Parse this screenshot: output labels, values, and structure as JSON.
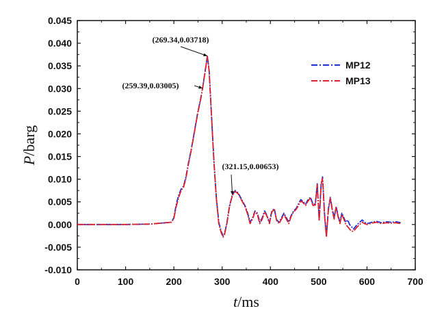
{
  "chart_data": {
    "type": "line",
    "title": "",
    "xlabel_var": "t",
    "xlabel_unit": "/ms",
    "ylabel_var": "P",
    "ylabel_unit": "/barg",
    "xlim": [
      0,
      700
    ],
    "ylim": [
      -0.01,
      0.045
    ],
    "xticks": [
      0,
      100,
      200,
      300,
      400,
      500,
      600,
      700
    ],
    "xtick_labels": [
      "0",
      "100",
      "200",
      "300",
      "400",
      "500",
      "600",
      "700"
    ],
    "yticks": [
      -0.01,
      -0.005,
      0.0,
      0.005,
      0.01,
      0.015,
      0.02,
      0.025,
      0.03,
      0.035,
      0.04,
      0.045
    ],
    "ytick_labels": [
      "-0.010",
      "-0.005",
      "0.000",
      "0.005",
      "0.010",
      "0.015",
      "0.020",
      "0.025",
      "0.030",
      "0.035",
      "0.040",
      "0.045"
    ],
    "grid": false,
    "legend_position": "top-right",
    "series": [
      {
        "name": "MP12",
        "color": "#1a2fd6",
        "style": "dash-dot",
        "x": [
          0,
          100,
          150,
          195,
          200,
          205,
          210,
          215,
          220,
          225,
          230,
          235,
          240,
          245,
          250,
          255,
          259.39,
          265,
          269.34,
          273,
          278,
          283,
          288,
          293,
          298,
          302,
          305,
          310,
          315,
          321.15,
          327,
          333,
          338,
          343,
          348,
          353,
          358,
          363,
          368,
          373,
          378,
          383,
          388,
          393,
          398,
          403,
          408,
          413,
          418,
          423,
          428,
          433,
          438,
          443,
          448,
          453,
          458,
          463,
          468,
          473,
          478,
          483,
          488,
          493,
          497,
          501,
          505,
          508,
          512,
          516,
          520,
          524,
          528,
          532,
          536,
          540,
          544,
          548,
          552,
          556,
          560,
          564,
          568,
          572,
          576,
          580,
          585,
          590,
          595,
          600,
          610,
          620,
          630,
          640,
          650,
          660,
          670
        ],
        "y": [
          0.0,
          0.0,
          0.0001,
          0.0005,
          0.0015,
          0.0045,
          0.0065,
          0.0078,
          0.0085,
          0.0105,
          0.0135,
          0.016,
          0.019,
          0.022,
          0.025,
          0.0275,
          0.03005,
          0.034,
          0.03718,
          0.034,
          0.024,
          0.014,
          0.006,
          0.0005,
          -0.0015,
          -0.0025,
          -0.002,
          0.0005,
          0.004,
          0.00653,
          0.0075,
          0.007,
          0.006,
          0.005,
          0.004,
          0.0025,
          0.0005,
          0.0015,
          0.003,
          0.0025,
          0.0005,
          0.0015,
          0.003,
          0.002,
          0.0005,
          0.003,
          0.0035,
          0.001,
          0.0005,
          0.0015,
          0.0025,
          0.0015,
          0.0005,
          0.002,
          0.003,
          0.0035,
          0.0045,
          0.0055,
          0.005,
          0.0045,
          0.0055,
          0.006,
          0.0045,
          0.0045,
          0.009,
          0.001,
          0.009,
          0.0105,
          0.0025,
          -0.0025,
          0.0035,
          0.006,
          0.0035,
          0.0015,
          0.004,
          0.002,
          0.0005,
          0.0025,
          0.0015,
          0.0005,
          0.001,
          0.0,
          -0.0005,
          -0.001,
          -0.0005,
          0.0,
          0.0005,
          0.001,
          0.0005,
          0.0002,
          0.0005,
          0.0007,
          0.0004,
          0.0006,
          0.0005,
          0.0006,
          0.0004
        ]
      },
      {
        "name": "MP13",
        "color": "#e0202a",
        "style": "dash-dot",
        "x": [
          0,
          100,
          150,
          195,
          200,
          205,
          210,
          215,
          220,
          225,
          230,
          235,
          240,
          245,
          250,
          255,
          259.39,
          265,
          269.34,
          273,
          278,
          283,
          288,
          293,
          298,
          302,
          305,
          310,
          315,
          321.15,
          327,
          333,
          338,
          343,
          348,
          353,
          358,
          363,
          368,
          373,
          378,
          383,
          388,
          393,
          398,
          403,
          408,
          413,
          418,
          423,
          428,
          433,
          438,
          443,
          448,
          453,
          458,
          463,
          468,
          473,
          478,
          483,
          488,
          493,
          497,
          501,
          505,
          508,
          512,
          516,
          520,
          524,
          528,
          532,
          536,
          540,
          544,
          548,
          552,
          556,
          560,
          564,
          568,
          572,
          576,
          580,
          585,
          590,
          595,
          600,
          610,
          620,
          630,
          640,
          650,
          660,
          670
        ],
        "y": [
          0.0,
          0.0,
          0.0001,
          0.0005,
          0.0013,
          0.004,
          0.006,
          0.0075,
          0.0082,
          0.0102,
          0.0132,
          0.0158,
          0.0188,
          0.0218,
          0.0248,
          0.0273,
          0.03005,
          0.0338,
          0.0371,
          0.0338,
          0.0238,
          0.0138,
          0.0058,
          0.0002,
          -0.0018,
          -0.0028,
          -0.0022,
          0.0003,
          0.0038,
          0.0064,
          0.0073,
          0.0068,
          0.0058,
          0.0048,
          0.0038,
          0.0022,
          0.0002,
          0.0012,
          0.0028,
          0.0022,
          0.0002,
          0.0012,
          0.0028,
          0.0018,
          0.0002,
          0.0028,
          0.0033,
          0.0008,
          0.0002,
          0.0012,
          0.0022,
          0.0012,
          0.0002,
          0.0018,
          0.0028,
          0.0033,
          0.0042,
          0.0052,
          0.0048,
          0.0042,
          0.0052,
          0.0058,
          0.0042,
          0.0043,
          0.0088,
          0.0008,
          0.0088,
          0.0102,
          0.0022,
          -0.0028,
          0.0032,
          0.0058,
          0.0032,
          0.0012,
          0.0038,
          0.0018,
          0.0002,
          0.0022,
          0.0012,
          0.0,
          -0.0005,
          -0.001,
          -0.0015,
          -0.0015,
          -0.001,
          -0.0005,
          0.0,
          0.0005,
          0.0002,
          0.0,
          0.0003,
          0.0005,
          0.0002,
          0.0004,
          0.0003,
          0.0004,
          0.0002
        ]
      }
    ],
    "annotations": [
      {
        "text": "(269.34,0.03718)",
        "point": [
          269.34,
          0.03718
        ]
      },
      {
        "text": "(259.39,0.03005)",
        "point": [
          259.39,
          0.03005
        ]
      },
      {
        "text": "(321.15,0.00653)",
        "point": [
          321.15,
          0.00653
        ]
      }
    ]
  }
}
